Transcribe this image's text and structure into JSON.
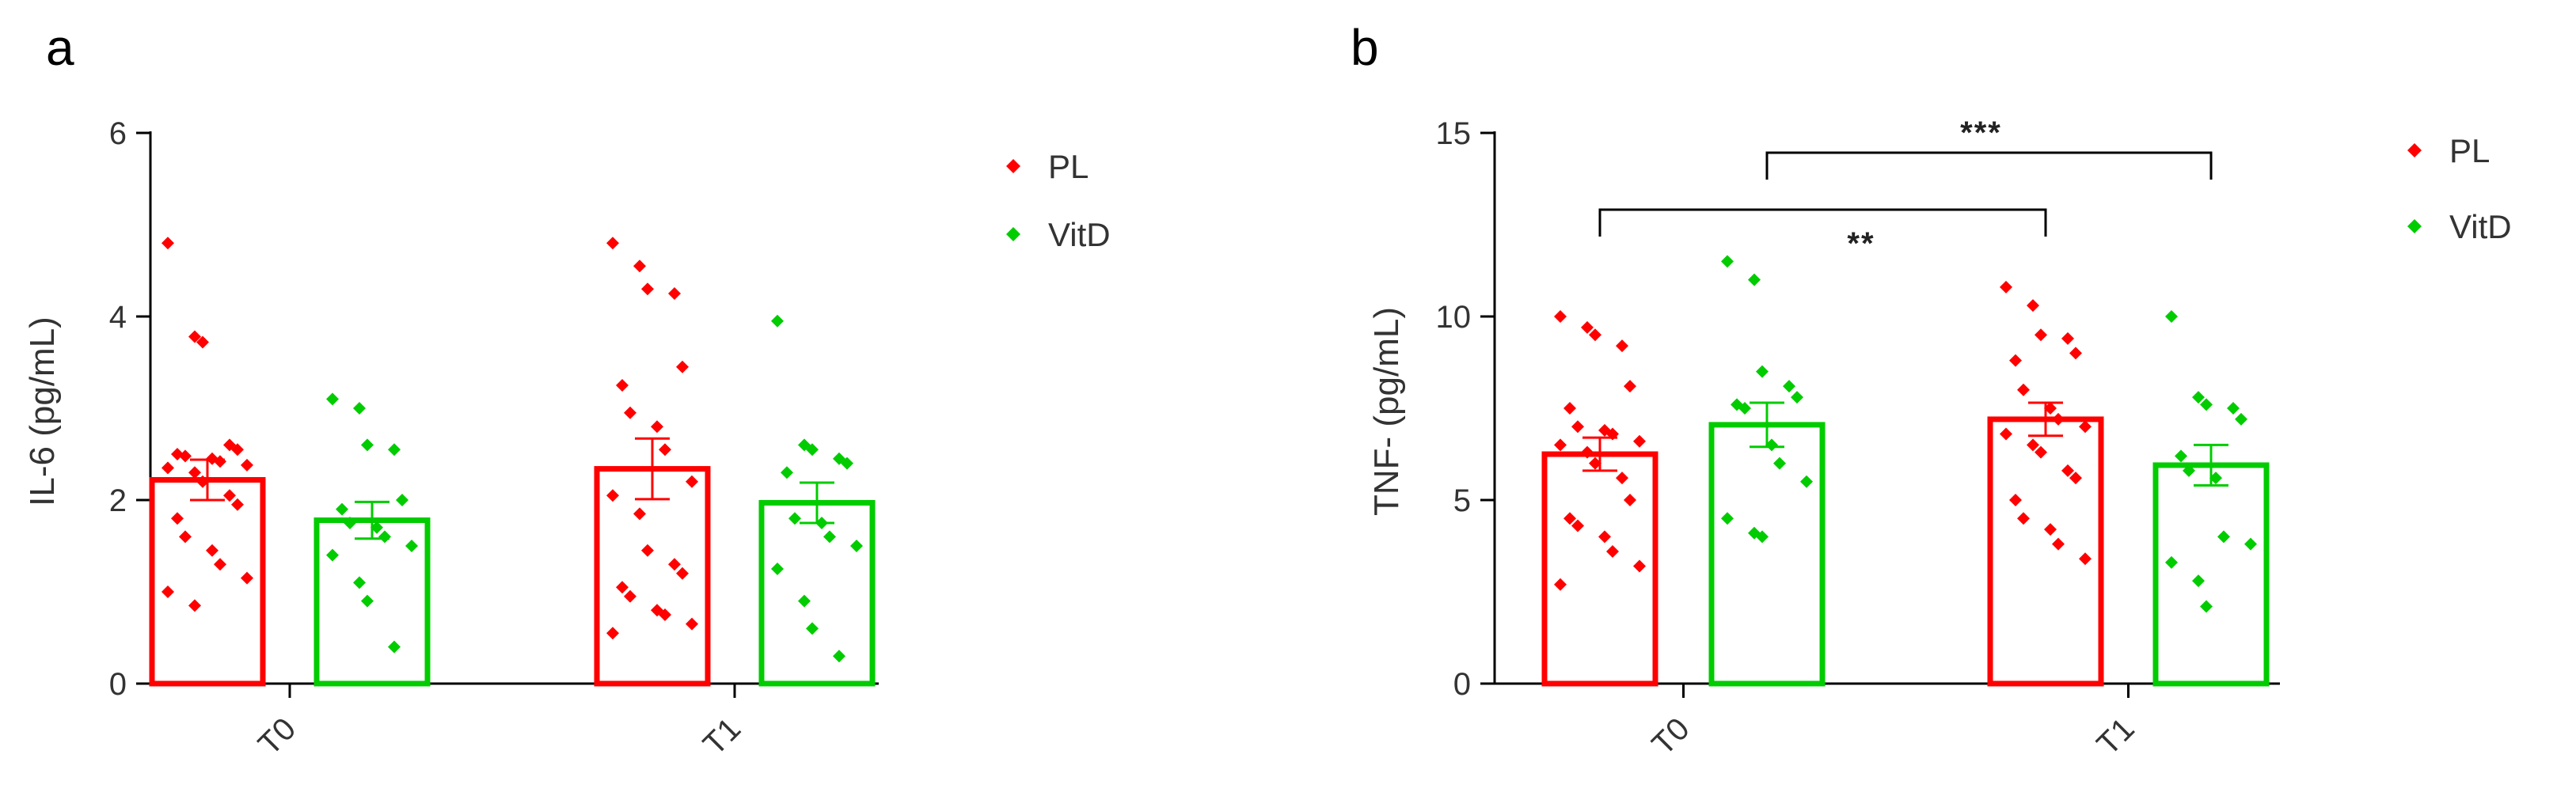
{
  "figure": {
    "panels": [
      "a",
      "b"
    ]
  },
  "colors": {
    "PL": "#ff0000",
    "VitD": "#00cc00"
  },
  "chart_data": [
    {
      "panel": "a",
      "type": "bar",
      "categories": [
        "T0",
        "T1"
      ],
      "ylabel": "IL-6 (pg/mL)",
      "xlabel": "",
      "ylim": [
        0,
        6
      ],
      "yticks": [
        "0",
        "2",
        "4",
        "6"
      ],
      "legend": [
        "PL",
        "VitD"
      ],
      "series": [
        {
          "name": "PL",
          "means": [
            2.22,
            2.34
          ],
          "sem": [
            0.22,
            0.33
          ],
          "points": [
            [
              4.8,
              3.78,
              3.72,
              2.6,
              2.55,
              2.5,
              2.48,
              2.45,
              2.42,
              2.38,
              2.35,
              2.3,
              2.2,
              2.05,
              1.95,
              1.8,
              1.6,
              1.45,
              1.3,
              1.15,
              1.0,
              0.85
            ],
            [
              4.8,
              4.55,
              4.3,
              4.25,
              3.45,
              3.25,
              2.95,
              2.8,
              2.55,
              2.2,
              2.05,
              1.85,
              1.45,
              1.3,
              1.2,
              1.05,
              0.95,
              0.8,
              0.75,
              0.65,
              0.55
            ]
          ]
        },
        {
          "name": "VitD",
          "means": [
            1.78,
            1.97
          ],
          "sem": [
            0.2,
            0.22
          ],
          "points": [
            [
              3.1,
              3.0,
              2.6,
              2.55,
              2.0,
              1.9,
              1.75,
              1.7,
              1.6,
              1.5,
              1.4,
              1.1,
              0.9,
              0.4
            ],
            [
              3.95,
              2.6,
              2.55,
              2.45,
              2.4,
              2.3,
              1.8,
              1.75,
              1.6,
              1.5,
              1.25,
              0.9,
              0.6,
              0.3
            ]
          ]
        }
      ],
      "significance": []
    },
    {
      "panel": "b",
      "type": "bar",
      "categories": [
        "T0",
        "T1"
      ],
      "ylabel": "TNF-    (pg/mL)",
      "xlabel": "",
      "ylim": [
        0,
        15
      ],
      "yticks": [
        "0",
        "5",
        "10",
        "15"
      ],
      "legend": [
        "PL",
        "VitD"
      ],
      "series": [
        {
          "name": "PL",
          "means": [
            6.25,
            7.2
          ],
          "sem": [
            0.45,
            0.45
          ],
          "points": [
            [
              10.0,
              9.7,
              9.5,
              9.2,
              8.1,
              7.5,
              7.0,
              6.9,
              6.8,
              6.6,
              6.5,
              6.3,
              6.0,
              5.6,
              5.0,
              4.5,
              4.3,
              4.0,
              3.6,
              3.2,
              2.7
            ],
            [
              10.8,
              10.3,
              9.5,
              9.4,
              9.0,
              8.8,
              8.0,
              7.5,
              7.2,
              7.0,
              6.8,
              6.5,
              6.3,
              5.8,
              5.6,
              5.0,
              4.5,
              4.2,
              3.8,
              3.4
            ]
          ]
        },
        {
          "name": "VitD",
          "means": [
            7.05,
            5.95
          ],
          "sem": [
            0.6,
            0.55
          ],
          "points": [
            [
              11.5,
              11.0,
              8.5,
              8.1,
              7.8,
              7.6,
              7.5,
              6.5,
              6.0,
              5.5,
              4.5,
              4.1,
              4.0
            ],
            [
              10.0,
              7.8,
              7.6,
              7.5,
              7.2,
              6.2,
              5.8,
              5.6,
              4.0,
              3.8,
              3.3,
              2.8,
              2.1
            ]
          ]
        }
      ],
      "significance": [
        {
          "from": [
            "PL",
            "T0"
          ],
          "to": [
            "PL",
            "T1"
          ],
          "label": "**"
        },
        {
          "from": [
            "VitD",
            "T0"
          ],
          "to": [
            "VitD",
            "T1"
          ],
          "label": "***"
        }
      ]
    }
  ]
}
